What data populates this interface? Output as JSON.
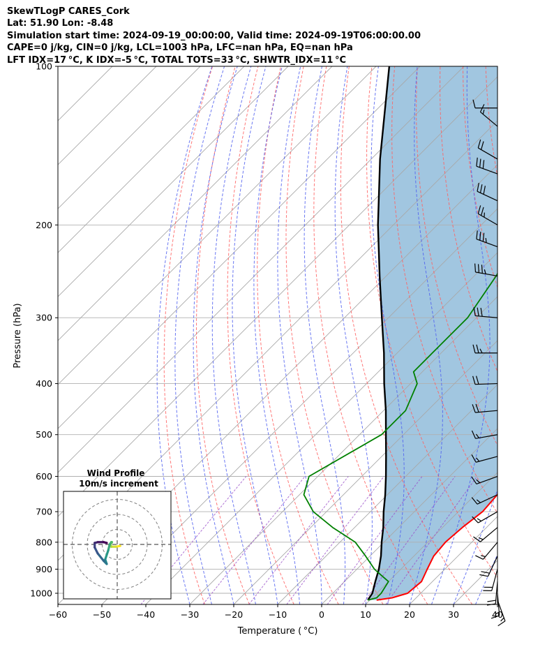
{
  "header": {
    "line1": "SkewTLogP CARES_Cork",
    "line2": "Lat: 51.90   Lon: -8.48",
    "line3": "Simulation start time: 2024-09-19_00:00:00, Valid time: 2024-09-19T06:00:00.00",
    "line4": "CAPE=0 j/kg, CIN=0 j/kg, LCL=1003 hPa, LFC=nan hPa, EQ=nan hPa",
    "line5": "LFT IDX=17 °C, K IDX=-5 °C, TOTAL TOTS=33 °C, SHWTR_IDX=11 °C"
  },
  "colors": {
    "temperature": "#ff0000",
    "dewpoint": "#008000",
    "parcel": "#000000",
    "shading": "#a1c6e0",
    "dry_adiabats": "#ff6060",
    "moist_adiabats": "#5060f0",
    "mixing_ratio": "#9a4fc9",
    "isotherms": "#a8a8a8",
    "grid": "#b0b0b0"
  },
  "chart_data": [
    {
      "type": "line",
      "chart": "skew-t log-p",
      "xlabel": "Temperature ( °C)",
      "ylabel": "Pressure (hPa)",
      "xlim": [
        -60,
        40
      ],
      "ylim": [
        1050,
        100
      ],
      "yscale": "log",
      "xticks": [
        -60,
        -50,
        -40,
        -30,
        -20,
        -10,
        0,
        10,
        20,
        30,
        40
      ],
      "xtick_labels": [
        "−60",
        "−50",
        "−40",
        "−30",
        "−20",
        "−10",
        "0",
        "10",
        "20",
        "30",
        "40"
      ],
      "yticks": [
        100,
        200,
        300,
        400,
        500,
        600,
        700,
        800,
        900,
        1000
      ],
      "ytick_labels": [
        "100",
        "200",
        "300",
        "400",
        "500",
        "600",
        "700",
        "800",
        "900",
        "1000"
      ],
      "grid": true,
      "series": [
        {
          "key": "temperature",
          "points": [
            [
              1030,
              11.5
            ],
            [
              1020,
              14.5
            ],
            [
              1000,
              17
            ],
            [
              950,
              17.5
            ],
            [
              900,
              16
            ],
            [
              850,
              14.5
            ],
            [
              800,
              14
            ],
            [
              750,
              14.5
            ],
            [
              700,
              15.5
            ],
            [
              650,
              15
            ],
            [
              600,
              13
            ],
            [
              500,
              7.5
            ],
            [
              400,
              0
            ],
            [
              300,
              -9.5
            ],
            [
              250,
              -14
            ],
            [
              220,
              -16.5
            ],
            [
              200,
              -18
            ],
            [
              180,
              -21
            ],
            [
              160,
              -26
            ],
            [
              150,
              -30
            ],
            [
              140,
              -35
            ],
            [
              130,
              -40.5
            ],
            [
              120,
              -45.5
            ],
            [
              110,
              -51
            ],
            [
              100,
              -56.5
            ]
          ]
        },
        {
          "key": "dewpoint",
          "points": [
            [
              1030,
              9.5
            ],
            [
              1020,
              11
            ],
            [
              1000,
              11
            ],
            [
              950,
              10
            ],
            [
              925,
              7
            ],
            [
              900,
              4
            ],
            [
              850,
              -1
            ],
            [
              800,
              -6.5
            ],
            [
              750,
              -15
            ],
            [
              700,
              -23
            ],
            [
              650,
              -29
            ],
            [
              600,
              -32
            ],
            [
              500,
              -25
            ],
            [
              450,
              -25
            ],
            [
              400,
              -28.5
            ],
            [
              380,
              -32
            ],
            [
              350,
              -32
            ],
            [
              300,
              -32
            ],
            [
              250,
              -35
            ],
            [
              200,
              -40
            ],
            [
              150,
              -45
            ],
            [
              120,
              -47
            ],
            [
              110,
              -50
            ],
            [
              100,
              -52
            ]
          ]
        },
        {
          "key": "parcel",
          "points": [
            [
              1030,
              9.5
            ],
            [
              1000,
              9.0
            ],
            [
              950,
              7.0
            ],
            [
              900,
              5.0
            ],
            [
              850,
              2.5
            ],
            [
              800,
              -0.5
            ],
            [
              750,
              -3.5
            ],
            [
              700,
              -7.0
            ],
            [
              650,
              -10.5
            ],
            [
              600,
              -14.5
            ],
            [
              550,
              -19.0
            ],
            [
              500,
              -24.0
            ],
            [
              450,
              -29.5
            ],
            [
              400,
              -36.0
            ],
            [
              350,
              -43.0
            ],
            [
              300,
              -51.5
            ],
            [
              250,
              -61.5
            ],
            [
              200,
              -73.5
            ],
            [
              150,
              -88.0
            ],
            [
              100,
              -107.0
            ]
          ]
        }
      ],
      "wind_barbs": [
        {
          "p": 1030,
          "spd": 15,
          "dir": 160
        },
        {
          "p": 1000,
          "spd": 15,
          "dir": 175
        },
        {
          "p": 950,
          "spd": 20,
          "dir": 185
        },
        {
          "p": 900,
          "spd": 20,
          "dir": 195
        },
        {
          "p": 850,
          "spd": 20,
          "dir": 205
        },
        {
          "p": 800,
          "spd": 15,
          "dir": 220
        },
        {
          "p": 750,
          "spd": 15,
          "dir": 230
        },
        {
          "p": 700,
          "spd": 15,
          "dir": 240
        },
        {
          "p": 650,
          "spd": 15,
          "dir": 245
        },
        {
          "p": 600,
          "spd": 15,
          "dir": 250
        },
        {
          "p": 550,
          "spd": 15,
          "dir": 255
        },
        {
          "p": 500,
          "spd": 15,
          "dir": 260
        },
        {
          "p": 450,
          "spd": 20,
          "dir": 265
        },
        {
          "p": 400,
          "spd": 20,
          "dir": 268
        },
        {
          "p": 350,
          "spd": 25,
          "dir": 270
        },
        {
          "p": 300,
          "spd": 30,
          "dir": 275
        },
        {
          "p": 250,
          "spd": 35,
          "dir": 280
        },
        {
          "p": 220,
          "spd": 35,
          "dir": 290
        },
        {
          "p": 200,
          "spd": 25,
          "dir": 300
        },
        {
          "p": 180,
          "spd": 30,
          "dir": 295
        },
        {
          "p": 160,
          "spd": 30,
          "dir": 290
        },
        {
          "p": 150,
          "spd": 20,
          "dir": 300
        },
        {
          "p": 130,
          "spd": 15,
          "dir": 310
        },
        {
          "p": 120,
          "spd": 10,
          "dir": 270
        }
      ]
    },
    {
      "type": "line",
      "chart": "hodograph",
      "title": "Wind Profile",
      "subtitle": "10m/s increment",
      "ring_step": 10,
      "ring_count": 3,
      "colormap": "viridis",
      "points": [
        [
          2,
          -1
        ],
        [
          -1,
          -1.5
        ],
        [
          -4,
          -1.5
        ],
        [
          -4.5,
          0
        ],
        [
          -3.5,
          1.5
        ],
        [
          -4,
          1.5
        ],
        [
          -5,
          0
        ],
        [
          -6,
          -4
        ],
        [
          -8,
          -10
        ],
        [
          -7,
          -13
        ],
        [
          -9,
          -11
        ],
        [
          -13,
          -6
        ],
        [
          -15,
          -2
        ],
        [
          -15,
          1
        ],
        [
          -13,
          1.5
        ],
        [
          -9,
          1.5
        ],
        [
          -7,
          1
        ]
      ]
    }
  ]
}
